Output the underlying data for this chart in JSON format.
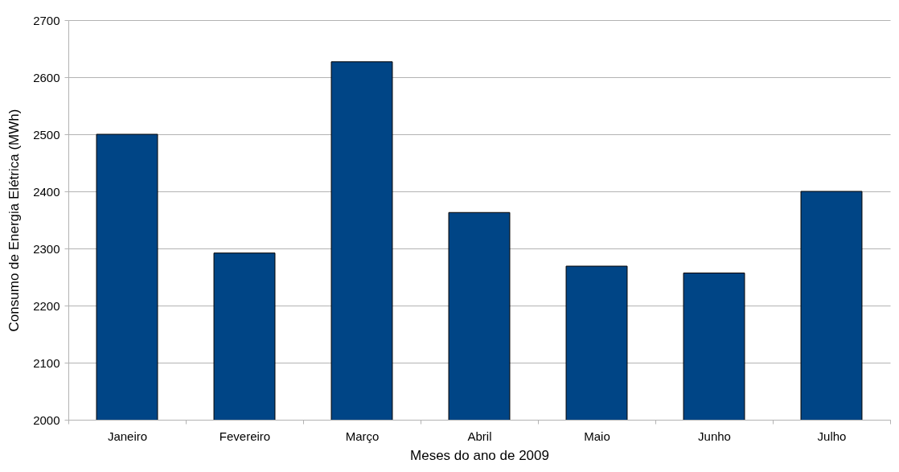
{
  "chart_data": {
    "type": "bar",
    "xlabel": "Meses do ano de 2009",
    "ylabel": "Consumo de Energia Elétrica (MWh)",
    "categories": [
      "Janeiro",
      "Fevereiro",
      "Março",
      "Abril",
      "Maio",
      "Junho",
      "Julho"
    ],
    "values": [
      2500,
      2292,
      2627,
      2363,
      2269,
      2257,
      2400
    ],
    "color": "#004586",
    "ylim": [
      2000,
      2700
    ],
    "yticks": [
      2000,
      2100,
      2200,
      2300,
      2400,
      2500,
      2600,
      2700
    ],
    "grid": "y"
  }
}
